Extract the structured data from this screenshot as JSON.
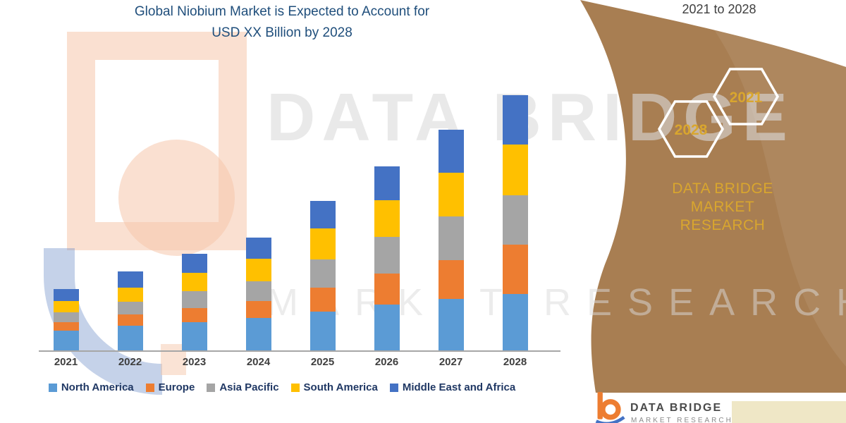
{
  "header": {
    "title_line1": "Global Niobium Market is Expected to Account for",
    "title_line2": "USD XX Billion by 2028",
    "period": "2021 to 2028"
  },
  "side_panel": {
    "hexagon_labels": [
      "2028",
      "2021"
    ],
    "brand_text_line1": "DATA BRIDGE MARKET",
    "brand_text_line2": "RESEARCH",
    "panel_color": "#A87E52",
    "accent_gold": "#D9A62E"
  },
  "watermark": {
    "line1": "DATA BRIDGE",
    "line2": "MARKET RESEARCH"
  },
  "footer": {
    "brand_name": "DATA BRIDGE",
    "brand_sub": "MARKET RESEARCH"
  },
  "chart_data": {
    "type": "bar",
    "stacked": true,
    "title": "Global Niobium Market is Expected to Account for USD XX Billion by 2028",
    "categories": [
      "2021",
      "2022",
      "2023",
      "2024",
      "2025",
      "2026",
      "2027",
      "2028"
    ],
    "series": [
      {
        "name": "North America",
        "color": "#5B9BD5",
        "values": [
          28,
          35,
          40,
          46,
          55,
          65,
          73,
          80
        ]
      },
      {
        "name": "Europe",
        "color": "#ED7D31",
        "values": [
          12,
          16,
          20,
          24,
          34,
          44,
          55,
          70
        ]
      },
      {
        "name": "Asia Pacific",
        "color": "#A5A5A5",
        "values": [
          14,
          18,
          24,
          28,
          40,
          52,
          62,
          70
        ]
      },
      {
        "name": "South America",
        "color": "#FFC000",
        "values": [
          16,
          20,
          26,
          32,
          44,
          52,
          62,
          72
        ]
      },
      {
        "name": "Middle East and Africa",
        "color": "#4472C4",
        "values": [
          17,
          23,
          27,
          30,
          39,
          48,
          61,
          70
        ]
      }
    ],
    "xlabel": "",
    "ylabel": "",
    "value_axis_labels": "none shown (relative units, USD XX Billion)",
    "gridlines": false,
    "legend_position": "bottom"
  }
}
